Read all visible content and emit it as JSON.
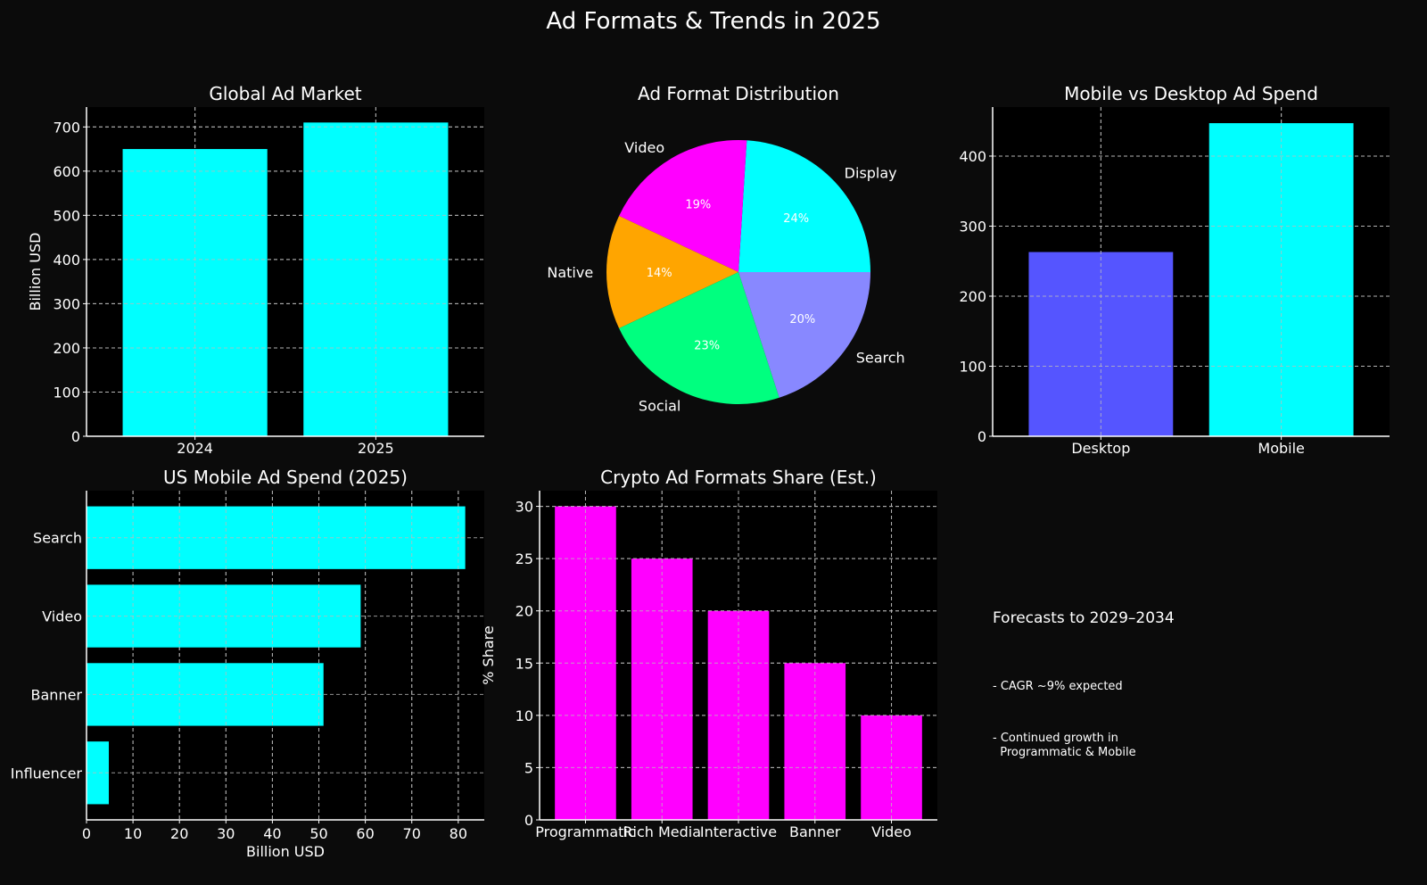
{
  "title": "Ad Formats & Trends in 2025",
  "colors": {
    "background": "#0b0b0b",
    "axes": "#000000",
    "cyan": "#00ffff",
    "magenta": "#ff00ff",
    "blue": "#5555ff"
  },
  "chart_data": [
    {
      "type": "bar",
      "title": "Global Ad Market",
      "categories": [
        "2024",
        "2025"
      ],
      "values": [
        650,
        710
      ],
      "ylabel": "Billion USD",
      "xlabel": "",
      "ylim": [
        0,
        745
      ],
      "yticks": [
        0,
        100,
        200,
        300,
        400,
        500,
        600,
        700
      ],
      "colors": [
        "#00ffff",
        "#00ffff"
      ],
      "grid": true
    },
    {
      "type": "pie",
      "title": "Ad Format Distribution",
      "labels": [
        "Display",
        "Video",
        "Native",
        "Social",
        "Search"
      ],
      "values": [
        24,
        19,
        14,
        23,
        20
      ],
      "pct_labels": [
        "24%",
        "19%",
        "14%",
        "23%",
        "20%"
      ],
      "colors": [
        "#00ffff",
        "#ff00ff",
        "#ffa500",
        "#00ff7f",
        "#8888ff"
      ]
    },
    {
      "type": "bar",
      "title": "Mobile vs Desktop Ad Spend",
      "categories": [
        "Desktop",
        "Mobile"
      ],
      "values": [
        263,
        447
      ],
      "ylim": [
        0,
        470
      ],
      "yticks": [
        0,
        100,
        200,
        300,
        400
      ],
      "colors": [
        "#5555ff",
        "#00ffff"
      ],
      "grid": true
    },
    {
      "type": "barh",
      "title": "US Mobile Ad Spend (2025)",
      "categories": [
        "Search",
        "Video",
        "Banner",
        "Influencer"
      ],
      "values": [
        81.5,
        59,
        51,
        4.8
      ],
      "xlabel": "Billion USD",
      "xlim": [
        0,
        85.6
      ],
      "xticks": [
        0,
        10,
        20,
        30,
        40,
        50,
        60,
        70,
        80
      ],
      "colors": [
        "#00ffff"
      ],
      "grid": true
    },
    {
      "type": "bar",
      "title": "Crypto Ad Formats Share (Est.)",
      "categories": [
        "Programmatic",
        "Rich Media",
        "Interactive",
        "Banner",
        "Video"
      ],
      "values": [
        30,
        25,
        20,
        15,
        10
      ],
      "ylabel": "% Share",
      "ylim": [
        0,
        31.5
      ],
      "yticks": [
        0,
        5,
        10,
        15,
        20,
        25,
        30
      ],
      "colors": [
        "#ff00ff"
      ],
      "grid": true
    }
  ],
  "notes": {
    "heading": "Forecasts to 2029–2034",
    "bullet1": "- CAGR ~9% expected",
    "bullet2_line1": "- Continued growth in",
    "bullet2_line2": "  Programmatic & Mobile"
  }
}
